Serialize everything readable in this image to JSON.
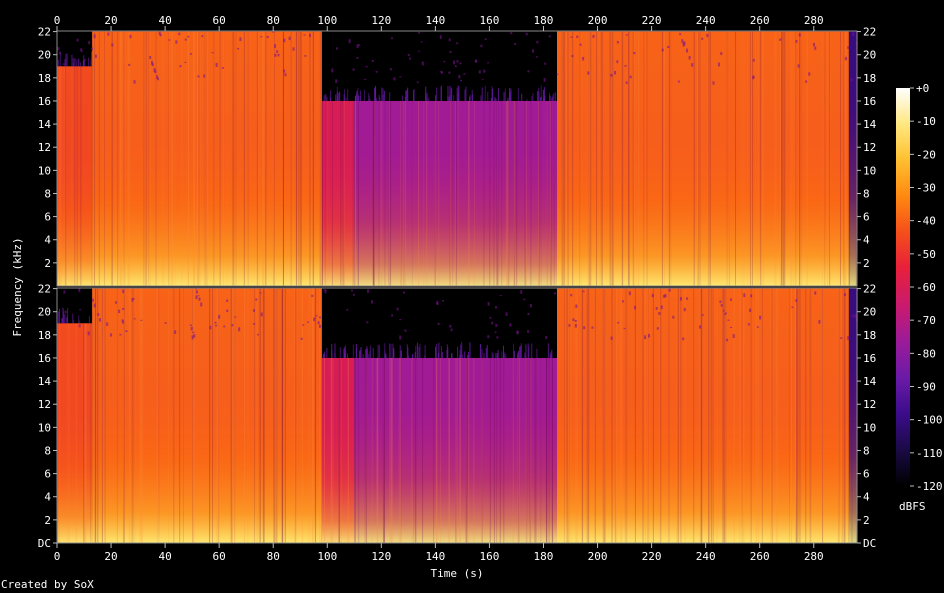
{
  "chart_data": {
    "type": "heatmap",
    "title": "",
    "xlabel": "Time (s)",
    "ylabel": "Frequency (kHz)",
    "xlim": [
      0,
      296
    ],
    "ylim": [
      0,
      22.05
    ],
    "x_ticks": [
      "0",
      "20",
      "40",
      "60",
      "80",
      "100",
      "120",
      "140",
      "160",
      "180",
      "200",
      "220",
      "240",
      "260",
      "280"
    ],
    "y_ticks": [
      "DC",
      "2",
      "4",
      "6",
      "8",
      "10",
      "12",
      "14",
      "16",
      "18",
      "20",
      "22"
    ],
    "channels": 2,
    "colorbar": {
      "label": "dBFS",
      "range": [
        -120,
        0
      ],
      "ticks": [
        "+0",
        "-10",
        "-20",
        "-30",
        "-40",
        "-50",
        "-60",
        "-70",
        "-80",
        "-90",
        "-100",
        "-110",
        "-120"
      ],
      "colors": [
        "#000000",
        "#1a0a45",
        "#3a0c8a",
        "#6a1aa8",
        "#9a1b9a",
        "#c81a70",
        "#e8203a",
        "#f5501a",
        "#ff8a10",
        "#ffc030",
        "#ffe880",
        "#ffffff"
      ]
    },
    "regions": [
      {
        "t_start": 0,
        "t_end": 13,
        "level_db": -45,
        "cutoff_khz": 19
      },
      {
        "t_start": 13,
        "t_end": 98,
        "level_db": -40,
        "cutoff_khz": 22
      },
      {
        "t_start": 98,
        "t_end": 110,
        "level_db": -60,
        "cutoff_khz": 16
      },
      {
        "t_start": 110,
        "t_end": 185,
        "level_db": -75,
        "cutoff_khz": 16
      },
      {
        "t_start": 185,
        "t_end": 293,
        "level_db": -40,
        "cutoff_khz": 22
      },
      {
        "t_start": 293,
        "t_end": 296,
        "level_db": -100,
        "cutoff_khz": 22
      }
    ]
  },
  "credit": "Created by SoX"
}
